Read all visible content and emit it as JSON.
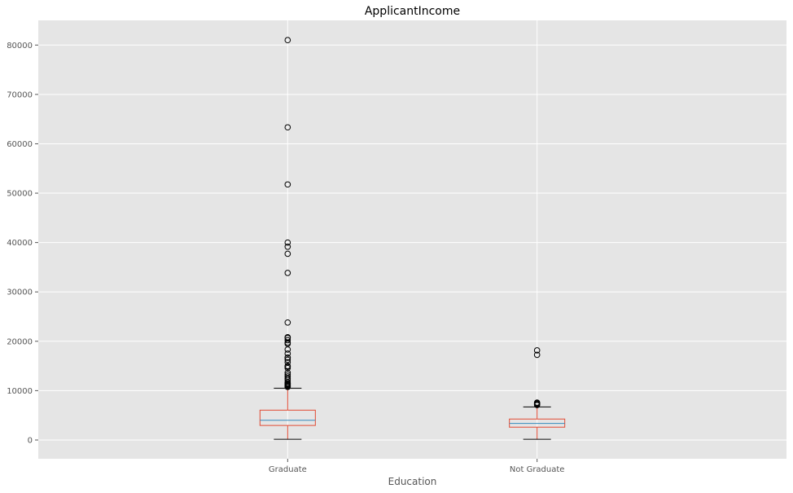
{
  "chart_data": {
    "type": "box",
    "title": "ApplicantIncome",
    "xlabel": "Education",
    "ylabel": "",
    "ylim": [
      -3800,
      85000
    ],
    "yticks": [
      0,
      10000,
      20000,
      30000,
      40000,
      50000,
      60000,
      70000,
      80000
    ],
    "ytick_labels": [
      "0",
      "10000",
      "20000",
      "30000",
      "40000",
      "50000",
      "60000",
      "70000",
      "80000"
    ],
    "grid": true,
    "categories": [
      "Graduate",
      "Not Graduate"
    ],
    "boxes": [
      {
        "category": "Graduate",
        "whisker_low": 150,
        "q1": 2950,
        "median": 4000,
        "q3": 6050,
        "whisker_high": 10500,
        "outliers": [
          81000,
          63337,
          51763,
          39999,
          39147,
          37719,
          33846,
          23803,
          20833,
          20667,
          20233,
          19730,
          19484,
          18333,
          17500,
          16692,
          16666,
          16250,
          15759,
          15000,
          14880,
          14583,
          13650,
          13262,
          12876,
          12500,
          12173,
          11757,
          11500,
          11417,
          11250,
          11146,
          11000,
          10833,
          10750
        ]
      },
      {
        "category": "Not Graduate",
        "whisker_low": 150,
        "q1": 2600,
        "median": 3350,
        "q3": 4250,
        "whisker_high": 6700,
        "outliers": [
          18165,
          17263,
          7578,
          7451,
          7333,
          7167,
          7085
        ]
      }
    ],
    "colors": {
      "background": "#e5e5e5",
      "grid": "#ffffff",
      "box": "#e24a33",
      "median": "#348abd",
      "whisker_cap": "#000000",
      "outlier_edge": "#000000"
    }
  }
}
